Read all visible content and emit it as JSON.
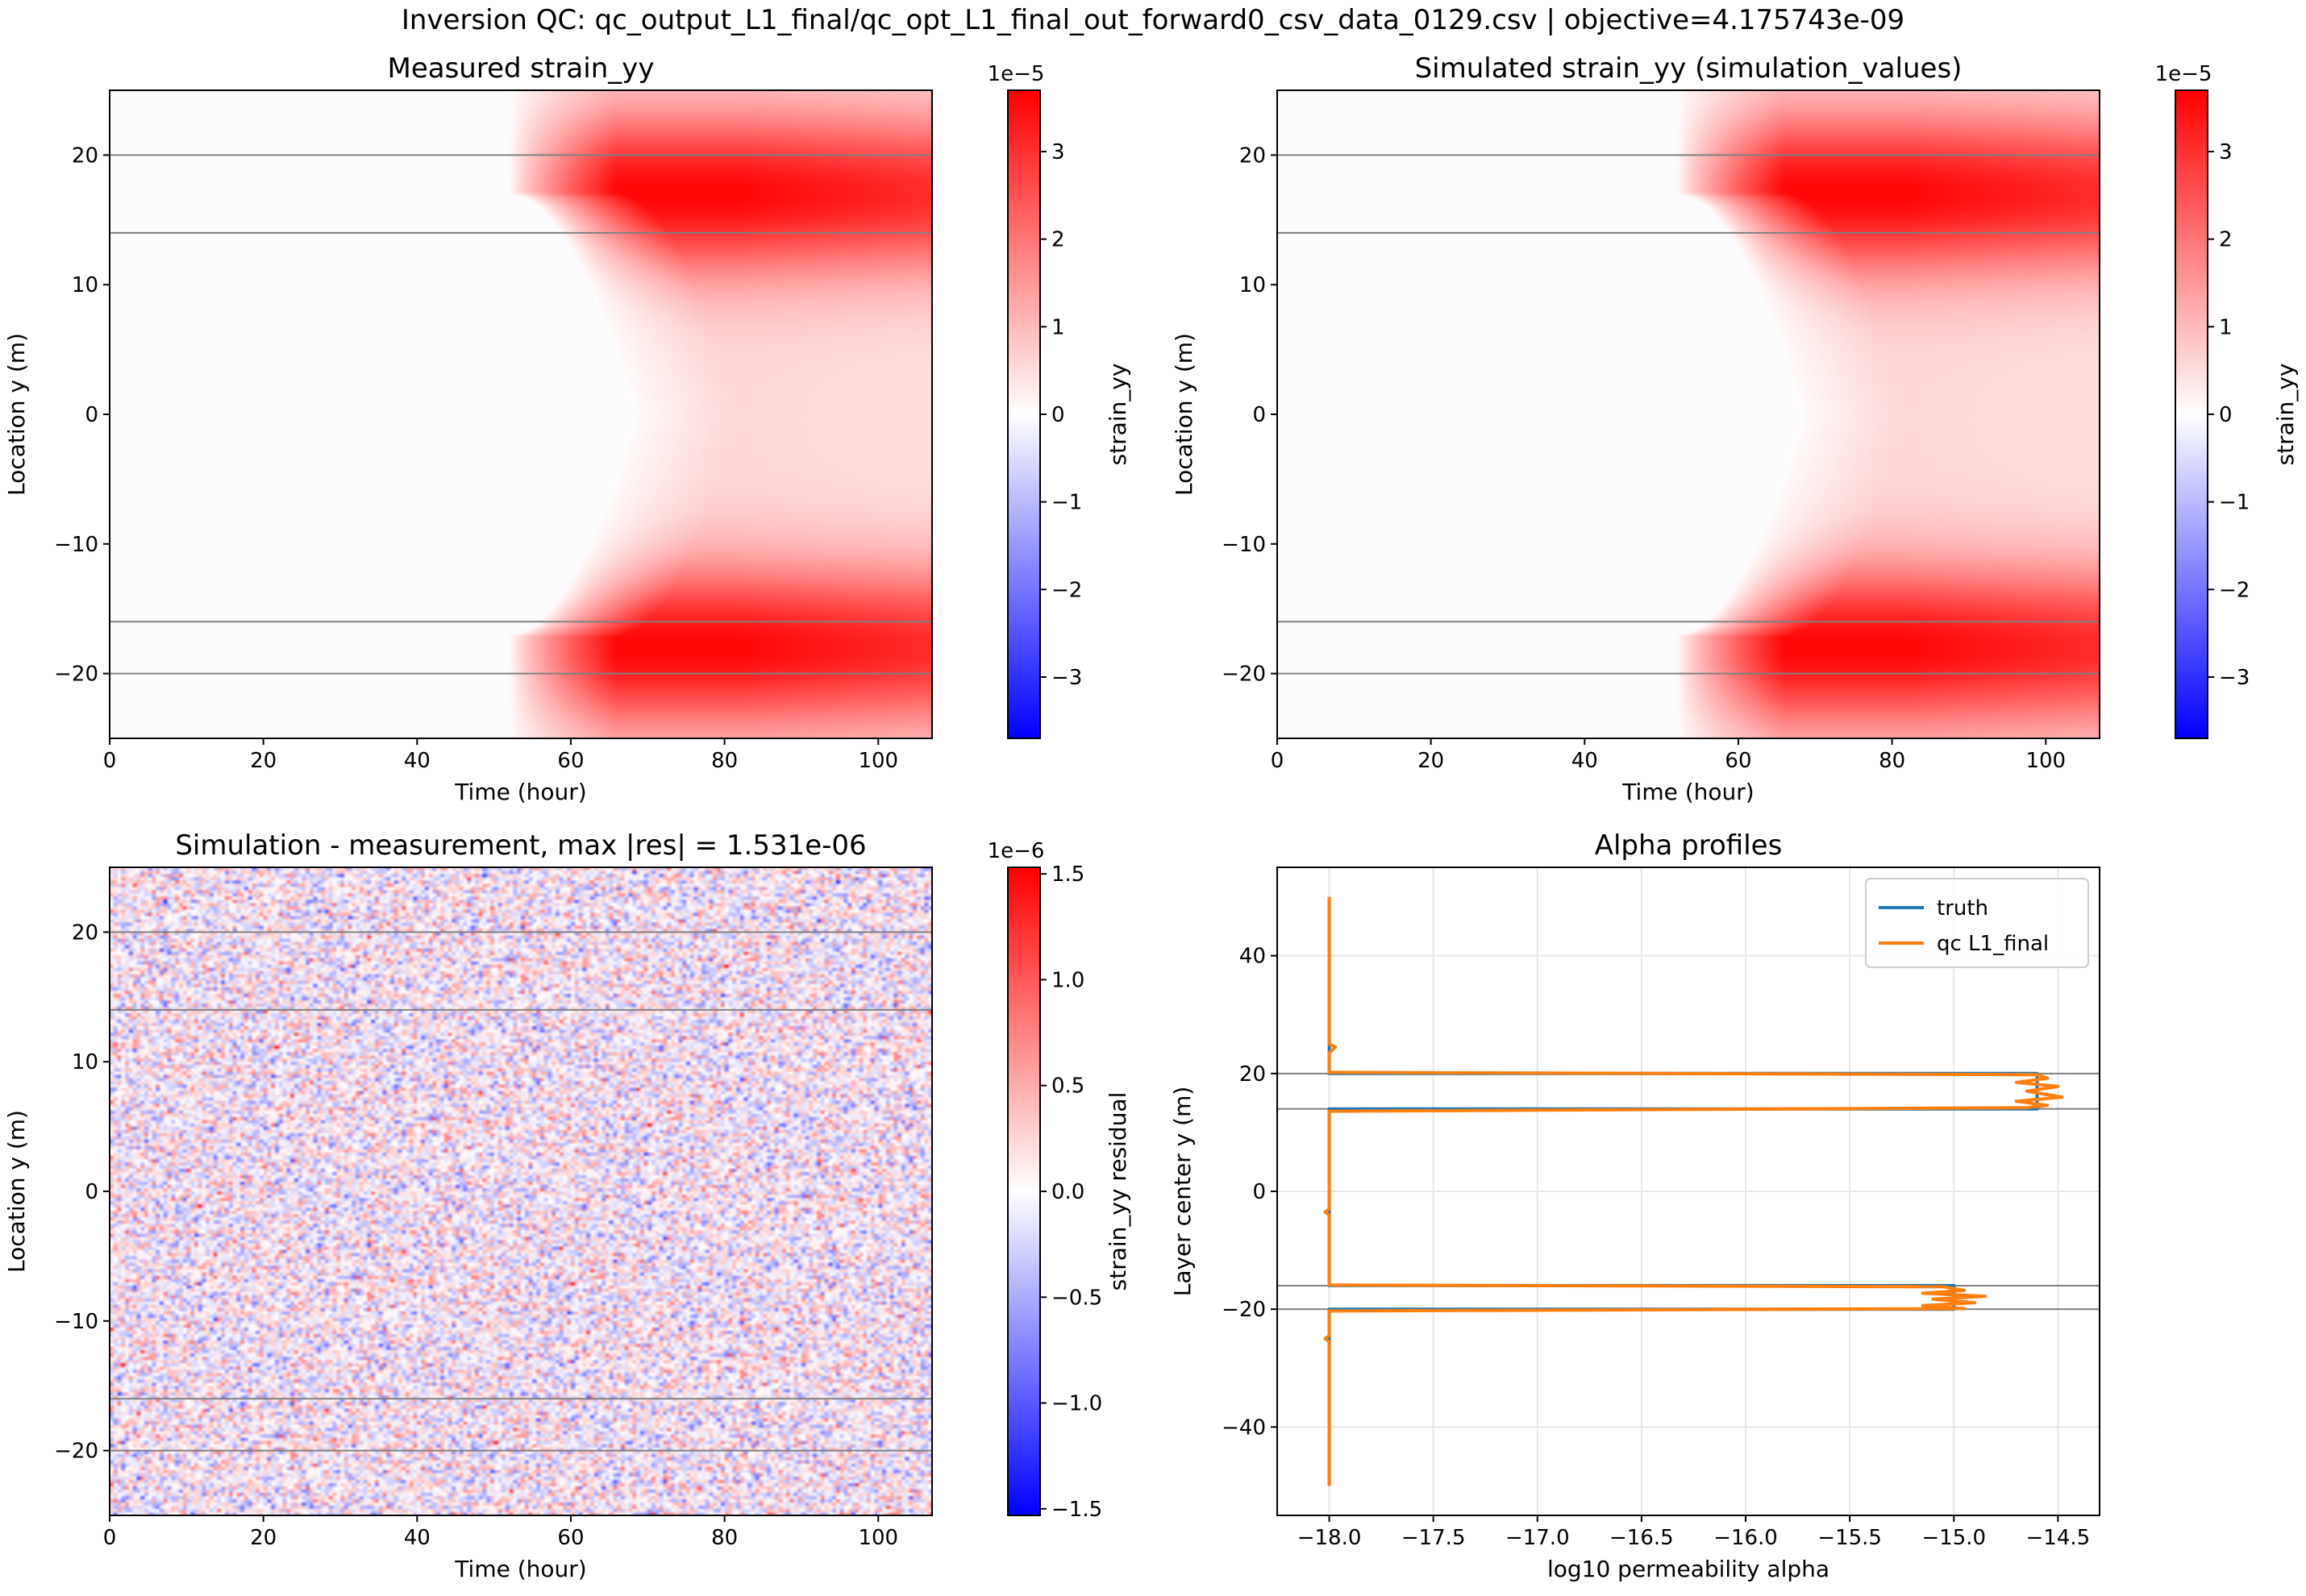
{
  "figure": {
    "suptitle": "Inversion QC: qc_output_L1_final/qc_opt_L1_final_out_forward0_csv_data_0129.csv | objective=4.175743e-09"
  },
  "chart_data": [
    {
      "id": "measured",
      "type": "heatmap",
      "title": "Measured strain_yy",
      "xlabel": "Time (hour)",
      "ylabel": "Location y (m)",
      "xlim": [
        0,
        107
      ],
      "ylim": [
        -25,
        25
      ],
      "xticks": [
        0,
        20,
        40,
        60,
        80,
        100
      ],
      "yticks": [
        -20,
        -10,
        0,
        10,
        20
      ],
      "colormap": "bwr",
      "colorbar": {
        "label": "strain_yy",
        "offset_text": "1e−5",
        "range": [
          -3.7,
          3.7
        ],
        "ticks": [
          -3,
          -2,
          -1,
          0,
          1,
          2,
          3
        ],
        "tick_labels": [
          "−3",
          "−2",
          "−1",
          "0",
          "1",
          "2",
          "3"
        ]
      },
      "layer_boundaries_y": [
        20,
        14,
        -16,
        -20
      ],
      "pattern": {
        "description_values_in_units_1e-5": true,
        "peak_value": 3.6,
        "band_centers_y": [
          17,
          -18
        ],
        "onset_time_edge": 52,
        "onset_time_center": 68
      }
    },
    {
      "id": "simulated",
      "type": "heatmap",
      "title": "Simulated strain_yy (simulation_values)",
      "xlabel": "Time (hour)",
      "ylabel": "Location y (m)",
      "xlim": [
        0,
        107
      ],
      "ylim": [
        -25,
        25
      ],
      "xticks": [
        0,
        20,
        40,
        60,
        80,
        100
      ],
      "yticks": [
        -20,
        -10,
        0,
        10,
        20
      ],
      "colormap": "bwr",
      "colorbar": {
        "label": "strain_yy",
        "offset_text": "1e−5",
        "range": [
          -3.7,
          3.7
        ],
        "ticks": [
          -3,
          -2,
          -1,
          0,
          1,
          2,
          3
        ],
        "tick_labels": [
          "−3",
          "−2",
          "−1",
          "0",
          "1",
          "2",
          "3"
        ]
      },
      "layer_boundaries_y": [
        20,
        14,
        -16,
        -20
      ],
      "pattern": {
        "peak_value": 3.6,
        "band_centers_y": [
          17,
          -18
        ],
        "onset_time_edge": 52,
        "onset_time_center": 68
      }
    },
    {
      "id": "residual",
      "type": "heatmap",
      "title": "Simulation - measurement, max |res| = 1.531e-06",
      "xlabel": "Time (hour)",
      "ylabel": "Location y (m)",
      "xlim": [
        0,
        107
      ],
      "ylim": [
        -25,
        25
      ],
      "xticks": [
        0,
        20,
        40,
        60,
        80,
        100
      ],
      "yticks": [
        -20,
        -10,
        0,
        10,
        20
      ],
      "colormap": "bwr",
      "colorbar": {
        "label": "strain_yy residual",
        "offset_text": "1e−6",
        "range": [
          -1.531,
          1.531
        ],
        "ticks": [
          -1.5,
          -1.0,
          -0.5,
          0.0,
          0.5,
          1.0,
          1.5
        ],
        "tick_labels": [
          "−1.5",
          "−1.0",
          "−0.5",
          "0.0",
          "0.5",
          "1.0",
          "1.5"
        ]
      },
      "layer_boundaries_y": [
        20,
        14,
        -16,
        -20
      ],
      "pattern": {
        "noise_rms": 0.35
      }
    },
    {
      "id": "alpha",
      "type": "line",
      "title": "Alpha profiles",
      "xlabel": "log10 permeability alpha",
      "ylabel": "Layer center y (m)",
      "xlim": [
        -18.25,
        -14.3
      ],
      "ylim": [
        -55,
        55
      ],
      "xticks": [
        -18.0,
        -17.5,
        -17.0,
        -16.5,
        -16.0,
        -15.5,
        -15.0,
        -14.5
      ],
      "xtick_labels": [
        "−18.0",
        "−17.5",
        "−17.0",
        "−16.5",
        "−16.0",
        "−15.5",
        "−15.0",
        "−14.5"
      ],
      "yticks": [
        -40,
        -20,
        0,
        20,
        40
      ],
      "ytick_labels": [
        "−40",
        "−20",
        "0",
        "20",
        "40"
      ],
      "grid": true,
      "legend_position": "upper right",
      "layer_boundaries_y": [
        20,
        14,
        -16,
        -20
      ],
      "series": [
        {
          "name": "truth",
          "color": "#1f77b4",
          "points": [
            [
              -18.0,
              50
            ],
            [
              -18.0,
              20
            ],
            [
              -14.6,
              20
            ],
            [
              -14.6,
              14
            ],
            [
              -18.0,
              14
            ],
            [
              -18.0,
              -16
            ],
            [
              -15.0,
              -16
            ],
            [
              -15.0,
              -20
            ],
            [
              -18.0,
              -20
            ],
            [
              -18.0,
              -50
            ]
          ]
        },
        {
          "name": "qc L1_final",
          "color": "#ff7f0e",
          "points": [
            [
              -18.0,
              50
            ],
            [
              -18.0,
              25
            ],
            [
              -17.97,
              24.5
            ],
            [
              -18.0,
              23.5
            ],
            [
              -18.0,
              20.2
            ],
            [
              -14.6,
              19.8
            ],
            [
              -14.55,
              19.2
            ],
            [
              -14.7,
              18.5
            ],
            [
              -14.5,
              17.8
            ],
            [
              -14.65,
              17.0
            ],
            [
              -14.48,
              16.0
            ],
            [
              -14.7,
              15.3
            ],
            [
              -14.55,
              14.6
            ],
            [
              -14.65,
              14.2
            ],
            [
              -18.0,
              13.6
            ],
            [
              -18.0,
              -3.0
            ],
            [
              -18.02,
              -3.5
            ],
            [
              -18.0,
              -4.0
            ],
            [
              -18.0,
              -15.9
            ],
            [
              -15.05,
              -16.2
            ],
            [
              -14.95,
              -16.8
            ],
            [
              -15.15,
              -17.3
            ],
            [
              -14.85,
              -17.8
            ],
            [
              -15.1,
              -18.3
            ],
            [
              -14.9,
              -18.9
            ],
            [
              -15.15,
              -19.4
            ],
            [
              -14.95,
              -19.9
            ],
            [
              -18.0,
              -20.3
            ],
            [
              -18.0,
              -24.5
            ],
            [
              -18.02,
              -25.0
            ],
            [
              -18.0,
              -25.5
            ],
            [
              -18.0,
              -50
            ]
          ]
        }
      ]
    }
  ]
}
